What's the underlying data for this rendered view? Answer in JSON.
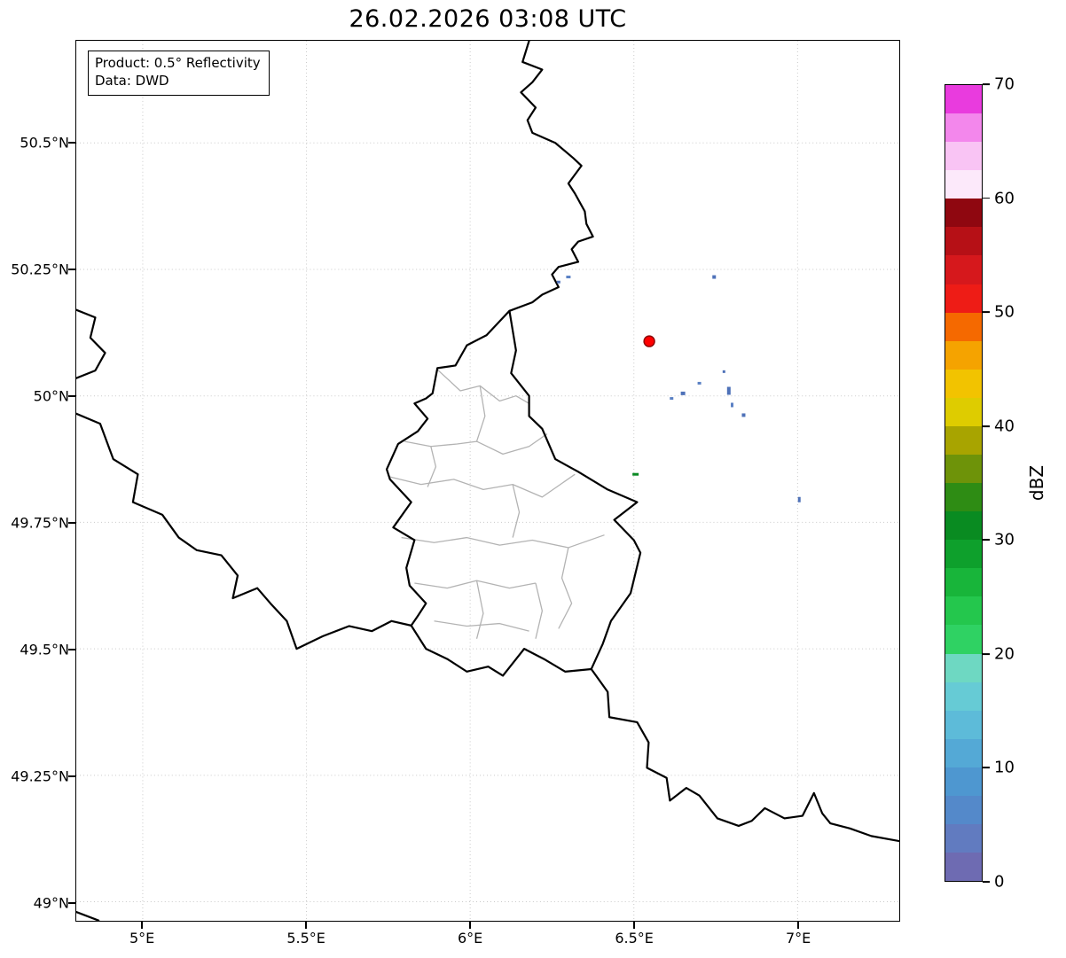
{
  "title": "26.02.2026 03:08 UTC",
  "annotation": {
    "product": "Product: 0.5° Reflectivity",
    "source": "Data: DWD"
  },
  "axes": {
    "lat_ticks": [
      {
        "label": "50.5°N",
        "value": 50.5
      },
      {
        "label": "50.25°N",
        "value": 50.25
      },
      {
        "label": "50°N",
        "value": 50.0
      },
      {
        "label": "49.75°N",
        "value": 49.75
      },
      {
        "label": "49.5°N",
        "value": 49.5
      },
      {
        "label": "49.25°N",
        "value": 49.25
      },
      {
        "label": "49°N",
        "value": 49.0
      }
    ],
    "lon_ticks": [
      {
        "label": "5°E",
        "value": 5.0
      },
      {
        "label": "5.5°E",
        "value": 5.5
      },
      {
        "label": "6°E",
        "value": 6.0
      },
      {
        "label": "6.5°E",
        "value": 6.5
      },
      {
        "label": "7°E",
        "value": 7.0
      }
    ]
  },
  "colorbar": {
    "label": "dBZ",
    "min": 0,
    "max": 70,
    "ticks": [
      0,
      10,
      20,
      30,
      40,
      50,
      60,
      70
    ],
    "colors": [
      "#6E6BB2",
      "#617BC0",
      "#5489CA",
      "#4E97D0",
      "#54A9D6",
      "#5DBBD9",
      "#66CBD5",
      "#6ED8C2",
      "#2FD263",
      "#24C74D",
      "#18B53A",
      "#0EA02C",
      "#098B21",
      "#2E8C14",
      "#6E9309",
      "#A8A400",
      "#DECC00",
      "#F2C300",
      "#F5A300",
      "#F56900",
      "#EE1C16",
      "#D6181C",
      "#B61016",
      "#8F0710",
      "#FCE9FA",
      "#F9C4F4",
      "#F387EC",
      "#E93BDE"
    ]
  },
  "chart_data": {
    "type": "map",
    "title": "26.02.2026 03:08 UTC",
    "value_unit": "dBZ",
    "extent": {
      "lon_min": 4.797,
      "lon_max": 7.3105,
      "lat_min": 48.9625,
      "lat_max": 50.702
    },
    "grid": true,
    "radar_marker": {
      "lon": 6.547,
      "lat": 50.108,
      "r": 6,
      "color": "#ff0000",
      "edge": "#8b0000"
    },
    "echoes": [
      {
        "lon": 6.27,
        "lat": 50.225,
        "w": 4,
        "h": 3,
        "color": "#4e71b8"
      },
      {
        "lon": 6.3,
        "lat": 50.235,
        "w": 5,
        "h": 3,
        "color": "#5a80c4"
      },
      {
        "lon": 6.745,
        "lat": 50.235,
        "w": 4,
        "h": 4,
        "color": "#4e71b8"
      },
      {
        "lon": 6.615,
        "lat": 49.995,
        "w": 4,
        "h": 3,
        "color": "#5a80c4"
      },
      {
        "lon": 6.65,
        "lat": 50.005,
        "w": 5,
        "h": 4,
        "color": "#4e71b8"
      },
      {
        "lon": 6.7,
        "lat": 50.025,
        "w": 4,
        "h": 3,
        "color": "#5a80c4"
      },
      {
        "lon": 6.775,
        "lat": 50.048,
        "w": 3,
        "h": 3,
        "color": "#4e71b8"
      },
      {
        "lon": 6.79,
        "lat": 50.01,
        "w": 4,
        "h": 9,
        "color": "#4e71b8"
      },
      {
        "lon": 6.8,
        "lat": 49.982,
        "w": 3,
        "h": 5,
        "color": "#5a80c4"
      },
      {
        "lon": 6.835,
        "lat": 49.962,
        "w": 4,
        "h": 4,
        "color": "#4e71b8"
      },
      {
        "lon": 7.005,
        "lat": 49.795,
        "w": 3,
        "h": 6,
        "color": "#4e71b8"
      },
      {
        "lon": 6.505,
        "lat": 49.845,
        "w": 7,
        "h": 3,
        "color": "#0b8a24"
      }
    ],
    "borders": {
      "countries": [
        [
          [
            6.18,
            50.702
          ],
          [
            6.16,
            50.66
          ],
          [
            6.22,
            50.645
          ],
          [
            6.19,
            50.62
          ],
          [
            6.155,
            50.6
          ],
          [
            6.2,
            50.57
          ],
          [
            6.175,
            50.545
          ],
          [
            6.19,
            50.52
          ],
          [
            6.26,
            50.5
          ],
          [
            6.315,
            50.47
          ],
          [
            6.34,
            50.455
          ],
          [
            6.3,
            50.42
          ],
          [
            6.32,
            50.4
          ],
          [
            6.35,
            50.365
          ],
          [
            6.355,
            50.34
          ],
          [
            6.375,
            50.315
          ],
          [
            6.33,
            50.305
          ],
          [
            6.31,
            50.29
          ],
          [
            6.33,
            50.265
          ],
          [
            6.27,
            50.255
          ],
          [
            6.25,
            50.24
          ],
          [
            6.27,
            50.215
          ],
          [
            6.22,
            50.2
          ],
          [
            6.19,
            50.185
          ],
          [
            6.12,
            50.168
          ]
        ],
        [
          [
            6.12,
            50.168
          ],
          [
            6.05,
            50.12
          ],
          [
            5.99,
            50.1
          ],
          [
            5.955,
            50.06
          ],
          [
            5.9,
            50.055
          ],
          [
            5.885,
            50.005
          ],
          [
            5.865,
            49.995
          ],
          [
            5.83,
            49.985
          ],
          [
            5.87,
            49.955
          ],
          [
            5.84,
            49.93
          ],
          [
            5.78,
            49.905
          ],
          [
            5.745,
            49.855
          ],
          [
            5.755,
            49.835
          ],
          [
            5.82,
            49.79
          ],
          [
            5.765,
            49.74
          ],
          [
            5.83,
            49.715
          ],
          [
            5.805,
            49.66
          ],
          [
            5.815,
            49.625
          ],
          [
            5.865,
            49.59
          ],
          [
            5.84,
            49.565
          ],
          [
            5.82,
            49.546
          ],
          [
            5.865,
            49.5
          ],
          [
            5.93,
            49.48
          ],
          [
            5.99,
            49.455
          ],
          [
            6.055,
            49.465
          ],
          [
            6.1,
            49.447
          ],
          [
            6.165,
            49.5
          ],
          [
            6.225,
            49.48
          ],
          [
            6.29,
            49.455
          ],
          [
            6.37,
            49.46
          ],
          [
            6.405,
            49.51
          ],
          [
            6.43,
            49.555
          ],
          [
            6.49,
            49.61
          ],
          [
            6.52,
            49.69
          ],
          [
            6.5,
            49.715
          ],
          [
            6.44,
            49.755
          ],
          [
            6.51,
            49.79
          ],
          [
            6.42,
            49.815
          ],
          [
            6.33,
            49.85
          ],
          [
            6.26,
            49.875
          ],
          [
            6.22,
            49.935
          ],
          [
            6.18,
            49.96
          ],
          [
            6.18,
            50.0
          ],
          [
            6.125,
            50.045
          ],
          [
            6.14,
            50.09
          ],
          [
            6.12,
            50.168
          ]
        ],
        [
          [
            4.797,
            49.965
          ],
          [
            4.87,
            49.945
          ],
          [
            4.91,
            49.875
          ],
          [
            4.985,
            49.845
          ],
          [
            4.97,
            49.79
          ],
          [
            5.06,
            49.765
          ],
          [
            5.11,
            49.72
          ],
          [
            5.165,
            49.695
          ],
          [
            5.24,
            49.685
          ],
          [
            5.29,
            49.645
          ],
          [
            5.275,
            49.6
          ],
          [
            5.35,
            49.62
          ],
          [
            5.39,
            49.59
          ],
          [
            5.44,
            49.555
          ],
          [
            5.47,
            49.5
          ],
          [
            5.55,
            49.525
          ],
          [
            5.63,
            49.545
          ],
          [
            5.7,
            49.535
          ],
          [
            5.76,
            49.555
          ],
          [
            5.82,
            49.546
          ]
        ],
        [
          [
            6.37,
            49.46
          ],
          [
            6.42,
            49.415
          ],
          [
            6.425,
            49.365
          ],
          [
            6.51,
            49.355
          ],
          [
            6.545,
            49.315
          ],
          [
            6.54,
            49.265
          ],
          [
            6.6,
            49.245
          ],
          [
            6.61,
            49.2
          ],
          [
            6.66,
            49.225
          ],
          [
            6.7,
            49.21
          ],
          [
            6.755,
            49.165
          ],
          [
            6.82,
            49.15
          ],
          [
            6.86,
            49.16
          ],
          [
            6.9,
            49.185
          ],
          [
            6.96,
            49.165
          ],
          [
            7.015,
            49.17
          ],
          [
            7.05,
            49.215
          ],
          [
            7.075,
            49.175
          ],
          [
            7.1,
            49.155
          ],
          [
            7.16,
            49.145
          ],
          [
            7.225,
            49.13
          ],
          [
            7.3105,
            49.12
          ]
        ],
        [
          [
            4.797,
            50.17
          ],
          [
            4.855,
            50.155
          ],
          [
            4.84,
            50.115
          ],
          [
            4.885,
            50.085
          ],
          [
            4.855,
            50.05
          ],
          [
            4.797,
            50.035
          ]
        ],
        [
          [
            4.797,
            48.98
          ],
          [
            4.865,
            48.963
          ]
        ]
      ],
      "cantons": [
        [
          [
            5.9,
            50.052
          ],
          [
            5.97,
            50.01
          ],
          [
            6.03,
            50.02
          ],
          [
            6.09,
            49.99
          ],
          [
            6.14,
            50.0
          ],
          [
            6.18,
            49.985
          ]
        ],
        [
          [
            6.03,
            50.02
          ],
          [
            6.045,
            49.96
          ],
          [
            6.02,
            49.91
          ]
        ],
        [
          [
            5.8,
            49.91
          ],
          [
            5.88,
            49.9
          ],
          [
            5.96,
            49.905
          ],
          [
            6.02,
            49.91
          ],
          [
            6.1,
            49.885
          ],
          [
            6.18,
            49.9
          ],
          [
            6.235,
            49.925
          ]
        ],
        [
          [
            5.88,
            49.9
          ],
          [
            5.895,
            49.86
          ],
          [
            5.87,
            49.82
          ]
        ],
        [
          [
            5.755,
            49.84
          ],
          [
            5.85,
            49.825
          ],
          [
            5.95,
            49.835
          ],
          [
            6.04,
            49.815
          ],
          [
            6.13,
            49.825
          ],
          [
            6.22,
            49.8
          ],
          [
            6.32,
            49.845
          ]
        ],
        [
          [
            6.13,
            49.825
          ],
          [
            6.15,
            49.77
          ],
          [
            6.13,
            49.72
          ]
        ],
        [
          [
            5.79,
            49.72
          ],
          [
            5.89,
            49.71
          ],
          [
            5.99,
            49.72
          ],
          [
            6.09,
            49.705
          ],
          [
            6.19,
            49.715
          ],
          [
            6.3,
            49.7
          ],
          [
            6.41,
            49.725
          ]
        ],
        [
          [
            6.3,
            49.7
          ],
          [
            6.28,
            49.64
          ],
          [
            6.31,
            49.59
          ],
          [
            6.27,
            49.54
          ]
        ],
        [
          [
            5.83,
            49.63
          ],
          [
            5.93,
            49.62
          ],
          [
            6.02,
            49.635
          ],
          [
            6.12,
            49.62
          ],
          [
            6.2,
            49.63
          ]
        ],
        [
          [
            6.02,
            49.635
          ],
          [
            6.04,
            49.57
          ],
          [
            6.02,
            49.52
          ]
        ],
        [
          [
            5.89,
            49.555
          ],
          [
            5.99,
            49.545
          ],
          [
            6.09,
            49.55
          ],
          [
            6.18,
            49.535
          ]
        ],
        [
          [
            6.2,
            49.63
          ],
          [
            6.22,
            49.575
          ],
          [
            6.2,
            49.52
          ]
        ]
      ]
    }
  }
}
